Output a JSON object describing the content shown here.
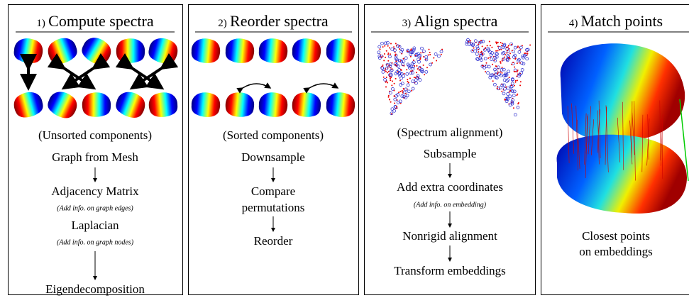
{
  "panels": [
    {
      "number": "1)",
      "title": "Compute spectra",
      "caption": "(Unsorted components)",
      "steps": [
        {
          "label": "Graph from Mesh"
        },
        {
          "label": "Adjacency Matrix",
          "note": "(Add info. on graph edges)"
        },
        {
          "label": "Laplacian",
          "note": "(Add info. on graph nodes)"
        },
        {
          "label": "Eigendecomposition"
        }
      ]
    },
    {
      "number": "2)",
      "title": "Reorder spectra",
      "caption": "(Sorted components)",
      "steps": [
        {
          "label": "Downsample"
        },
        {
          "label": [
            "Compare",
            "permutations"
          ]
        },
        {
          "label": "Reorder"
        }
      ]
    },
    {
      "number": "3)",
      "title": "Align spectra",
      "caption": "(Spectrum alignment)",
      "steps": [
        {
          "label": "Subsample"
        },
        {
          "label": "Add extra coordinates",
          "note": "(Add info. on embedding)"
        },
        {
          "label": "Nonrigid alignment"
        },
        {
          "label": "Transform embeddings"
        }
      ]
    },
    {
      "number": "4)",
      "title": "Match points",
      "caption": [
        "Closest points",
        "on embeddings"
      ]
    }
  ]
}
